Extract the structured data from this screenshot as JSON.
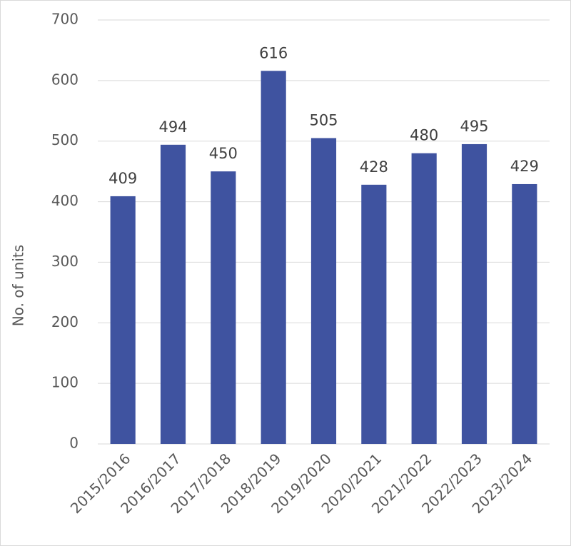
{
  "chart_data": {
    "type": "bar",
    "y_label": "No. of units",
    "categories": [
      "2015/2016",
      "2016/2017",
      "2017/2018",
      "2018/2019",
      "2019/2020",
      "2020/2021",
      "2021/2022",
      "2022/2023",
      "2023/2024"
    ],
    "values": [
      409,
      494,
      450,
      616,
      505,
      428,
      480,
      495,
      429
    ],
    "color": "#3f53a0",
    "ylim": [
      0,
      700
    ],
    "yticks": [
      0,
      100,
      200,
      300,
      400,
      500,
      600,
      700
    ],
    "grid": true
  }
}
